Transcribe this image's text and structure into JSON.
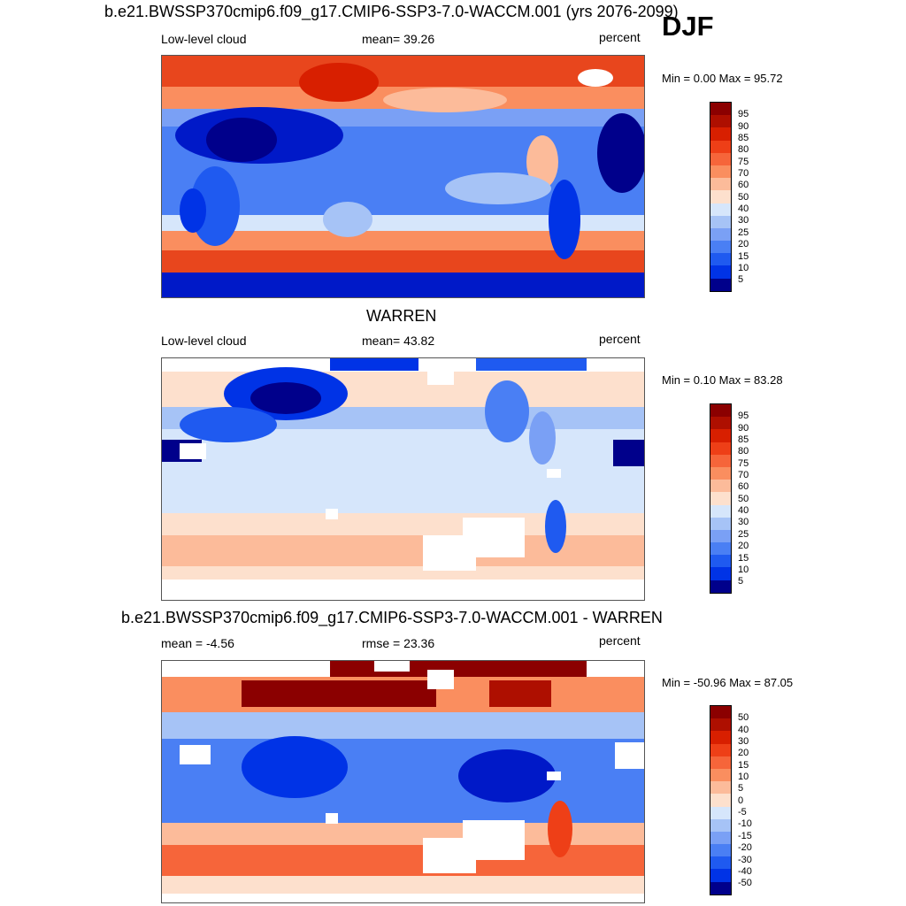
{
  "season": "DJF",
  "colors": {
    "levels_scale": [
      "#00008b",
      "#0019c8",
      "#0033e6",
      "#1f5af0",
      "#4a7ff4",
      "#7aa0f5",
      "#a6c3f6",
      "#d6e6fb",
      "#ffffff",
      "#fde0cd",
      "#fcbb9a",
      "#fa8e5f",
      "#f6653a",
      "#ee3f17",
      "#d81f00",
      "#ae0f00",
      "#8b0000"
    ],
    "diff_scale": [
      "#00008b",
      "#0019c8",
      "#0033e6",
      "#1f5af0",
      "#4a7ff4",
      "#7aa0f5",
      "#a6c3f6",
      "#d6e6fb",
      "#ffffff",
      "#fde0cd",
      "#fcbb9a",
      "#fa8e5f",
      "#f6653a",
      "#ee3f17",
      "#d81f00",
      "#ae0f00",
      "#8b0000"
    ]
  },
  "panels": [
    {
      "title": "b.e21.BWSSP370cmip6.f09_g17.CMIP6-SSP3-7.0-WACCM.001 (yrs 2076-2099)",
      "left_label": "Low-level cloud",
      "center_label": "mean=  39.26",
      "right_label": "percent",
      "minmax": "Min =   0.00 Max =  95.72",
      "ticks": [
        "95",
        "90",
        "85",
        "80",
        "75",
        "70",
        "60",
        "50",
        "40",
        "30",
        "25",
        "20",
        "15",
        "10",
        "5"
      ]
    },
    {
      "title": "WARREN",
      "left_label": "Low-level cloud",
      "center_label": "mean=  43.82",
      "right_label": "percent",
      "minmax": "Min =   0.10 Max =  83.28",
      "ticks": [
        "95",
        "90",
        "85",
        "80",
        "75",
        "70",
        "60",
        "50",
        "40",
        "30",
        "25",
        "20",
        "15",
        "10",
        "5"
      ]
    },
    {
      "title": "b.e21.BWSSP370cmip6.f09_g17.CMIP6-SSP3-7.0-WACCM.001 - WARREN",
      "left_label": "mean =  -4.56",
      "center_label": "rmse =  23.36",
      "right_label": "percent",
      "minmax": "Min = -50.96 Max =  87.05",
      "ticks": [
        "50",
        "40",
        "30",
        "20",
        "15",
        "10",
        "5",
        "0",
        "-5",
        "-10",
        "-15",
        "-20",
        "-30",
        "-40",
        "-50"
      ]
    }
  ],
  "chart_data": [
    {
      "type": "heatmap",
      "title": "b.e21.BWSSP370cmip6.f09_g17.CMIP6-SSP3-7.0-WACCM.001 (yrs 2076-2099)",
      "variable": "Low-level cloud",
      "units": "percent",
      "mean": 39.26,
      "min": 0.0,
      "max": 95.72,
      "contour_levels": [
        5,
        10,
        15,
        20,
        25,
        30,
        40,
        50,
        60,
        70,
        75,
        80,
        85,
        90,
        95
      ]
    },
    {
      "type": "heatmap",
      "title": "WARREN",
      "variable": "Low-level cloud",
      "units": "percent",
      "mean": 43.82,
      "min": 0.1,
      "max": 83.28,
      "contour_levels": [
        5,
        10,
        15,
        20,
        25,
        30,
        40,
        50,
        60,
        70,
        75,
        80,
        85,
        90,
        95
      ]
    },
    {
      "type": "heatmap",
      "title": "b.e21.BWSSP370cmip6.f09_g17.CMIP6-SSP3-7.0-WACCM.001 - WARREN",
      "units": "percent",
      "mean": -4.56,
      "rmse": 23.36,
      "min": -50.96,
      "max": 87.05,
      "contour_levels": [
        -50,
        -40,
        -30,
        -20,
        -15,
        -10,
        -5,
        0,
        5,
        10,
        15,
        20,
        30,
        40,
        50
      ]
    }
  ]
}
